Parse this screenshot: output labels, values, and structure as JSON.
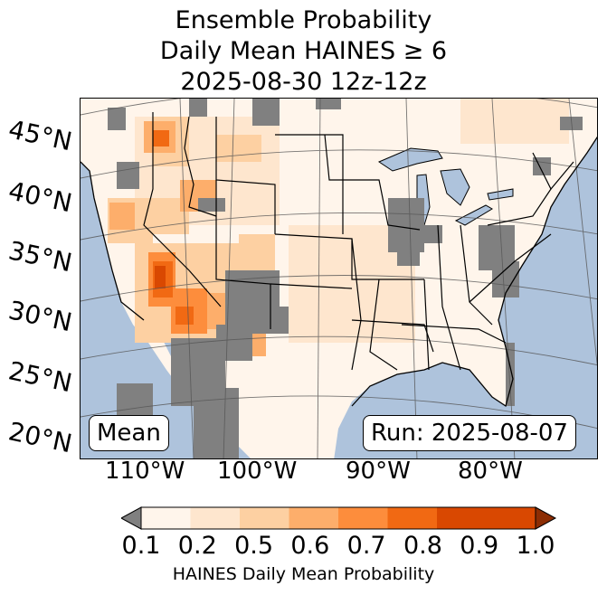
{
  "title": {
    "line1": "Ensemble Probability",
    "line2": "Daily Mean HAINES ≥ 6",
    "line3": "2025-08-30 12z-12z"
  },
  "map": {
    "left_label": "Mean",
    "right_label": "Run: 2025-08-07",
    "lat_labels": [
      "45°N",
      "40°N",
      "35°N",
      "30°N",
      "25°N",
      "20°N"
    ],
    "lon_labels": [
      "110°W",
      "100°W",
      "90°W",
      "80°W"
    ],
    "colors": {
      "ocean": "#aec3dc",
      "no_data": "#808080",
      "land_low": "#fff5eb"
    }
  },
  "colorbar": {
    "ticks": [
      "0.1",
      "0.2",
      "0.5",
      "0.6",
      "0.7",
      "0.8",
      "0.9",
      "1.0"
    ],
    "colors": [
      "#fff5eb",
      "#fee6ce",
      "#fdd0a2",
      "#fdae6b",
      "#fd8d3c",
      "#f16913",
      "#d94801",
      "#8c2d04"
    ],
    "under_color": "#808080",
    "label": "HAINES Daily Mean Probability"
  }
}
